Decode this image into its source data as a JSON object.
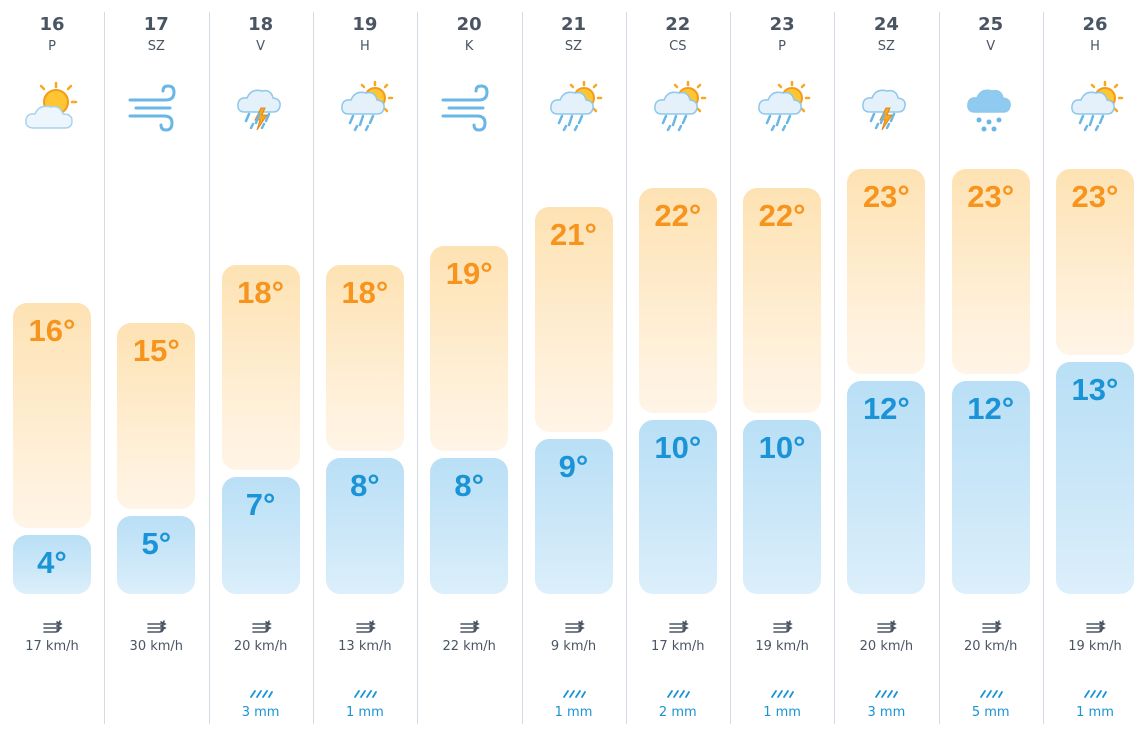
{
  "colors": {
    "high_temp": "#f7941d",
    "low_temp": "#1a94d6",
    "text": "#4a5563",
    "divider": "#d3dce6"
  },
  "units": {
    "temp": "°C",
    "wind": "km/h",
    "rain": "mm"
  },
  "days": [
    {
      "date": "16",
      "weekday": "P",
      "icon": "sun-behind-cloud-icon",
      "high": 16,
      "low": 4,
      "high_label": "16°",
      "low_label": "4°",
      "wind": "17 km/h",
      "rain": ""
    },
    {
      "date": "17",
      "weekday": "SZ",
      "icon": "wind-icon",
      "high": 15,
      "low": 5,
      "high_label": "15°",
      "low_label": "5°",
      "wind": "30 km/h",
      "rain": ""
    },
    {
      "date": "18",
      "weekday": "V",
      "icon": "thunderstorm-rain-icon",
      "high": 18,
      "low": 7,
      "high_label": "18°",
      "low_label": "7°",
      "wind": "20 km/h",
      "rain": "3 mm"
    },
    {
      "date": "19",
      "weekday": "H",
      "icon": "sun-cloud-rain-icon",
      "high": 18,
      "low": 8,
      "high_label": "18°",
      "low_label": "8°",
      "wind": "13 km/h",
      "rain": "1 mm"
    },
    {
      "date": "20",
      "weekday": "K",
      "icon": "wind-icon",
      "high": 19,
      "low": 8,
      "high_label": "19°",
      "low_label": "8°",
      "wind": "22 km/h",
      "rain": ""
    },
    {
      "date": "21",
      "weekday": "SZ",
      "icon": "sun-cloud-rain-icon",
      "high": 21,
      "low": 9,
      "high_label": "21°",
      "low_label": "9°",
      "wind": "9 km/h",
      "rain": "1 mm"
    },
    {
      "date": "22",
      "weekday": "CS",
      "icon": "sun-cloud-rain-icon",
      "high": 22,
      "low": 10,
      "high_label": "22°",
      "low_label": "10°",
      "wind": "17 km/h",
      "rain": "2 mm"
    },
    {
      "date": "23",
      "weekday": "P",
      "icon": "sun-cloud-rain-icon",
      "high": 22,
      "low": 10,
      "high_label": "22°",
      "low_label": "10°",
      "wind": "19 km/h",
      "rain": "1 mm"
    },
    {
      "date": "24",
      "weekday": "SZ",
      "icon": "thunderstorm-rain-icon",
      "high": 23,
      "low": 12,
      "high_label": "23°",
      "low_label": "12°",
      "wind": "20 km/h",
      "rain": "3 mm"
    },
    {
      "date": "25",
      "weekday": "V",
      "icon": "cloud-rain-icon",
      "high": 23,
      "low": 12,
      "high_label": "23°",
      "low_label": "12°",
      "wind": "20 km/h",
      "rain": "5 mm"
    },
    {
      "date": "26",
      "weekday": "H",
      "icon": "sun-cloud-rain-icon",
      "high": 23,
      "low": 13,
      "high_label": "23°",
      "low_label": "13°",
      "wind": "19 km/h",
      "rain": "1 mm"
    }
  ]
}
